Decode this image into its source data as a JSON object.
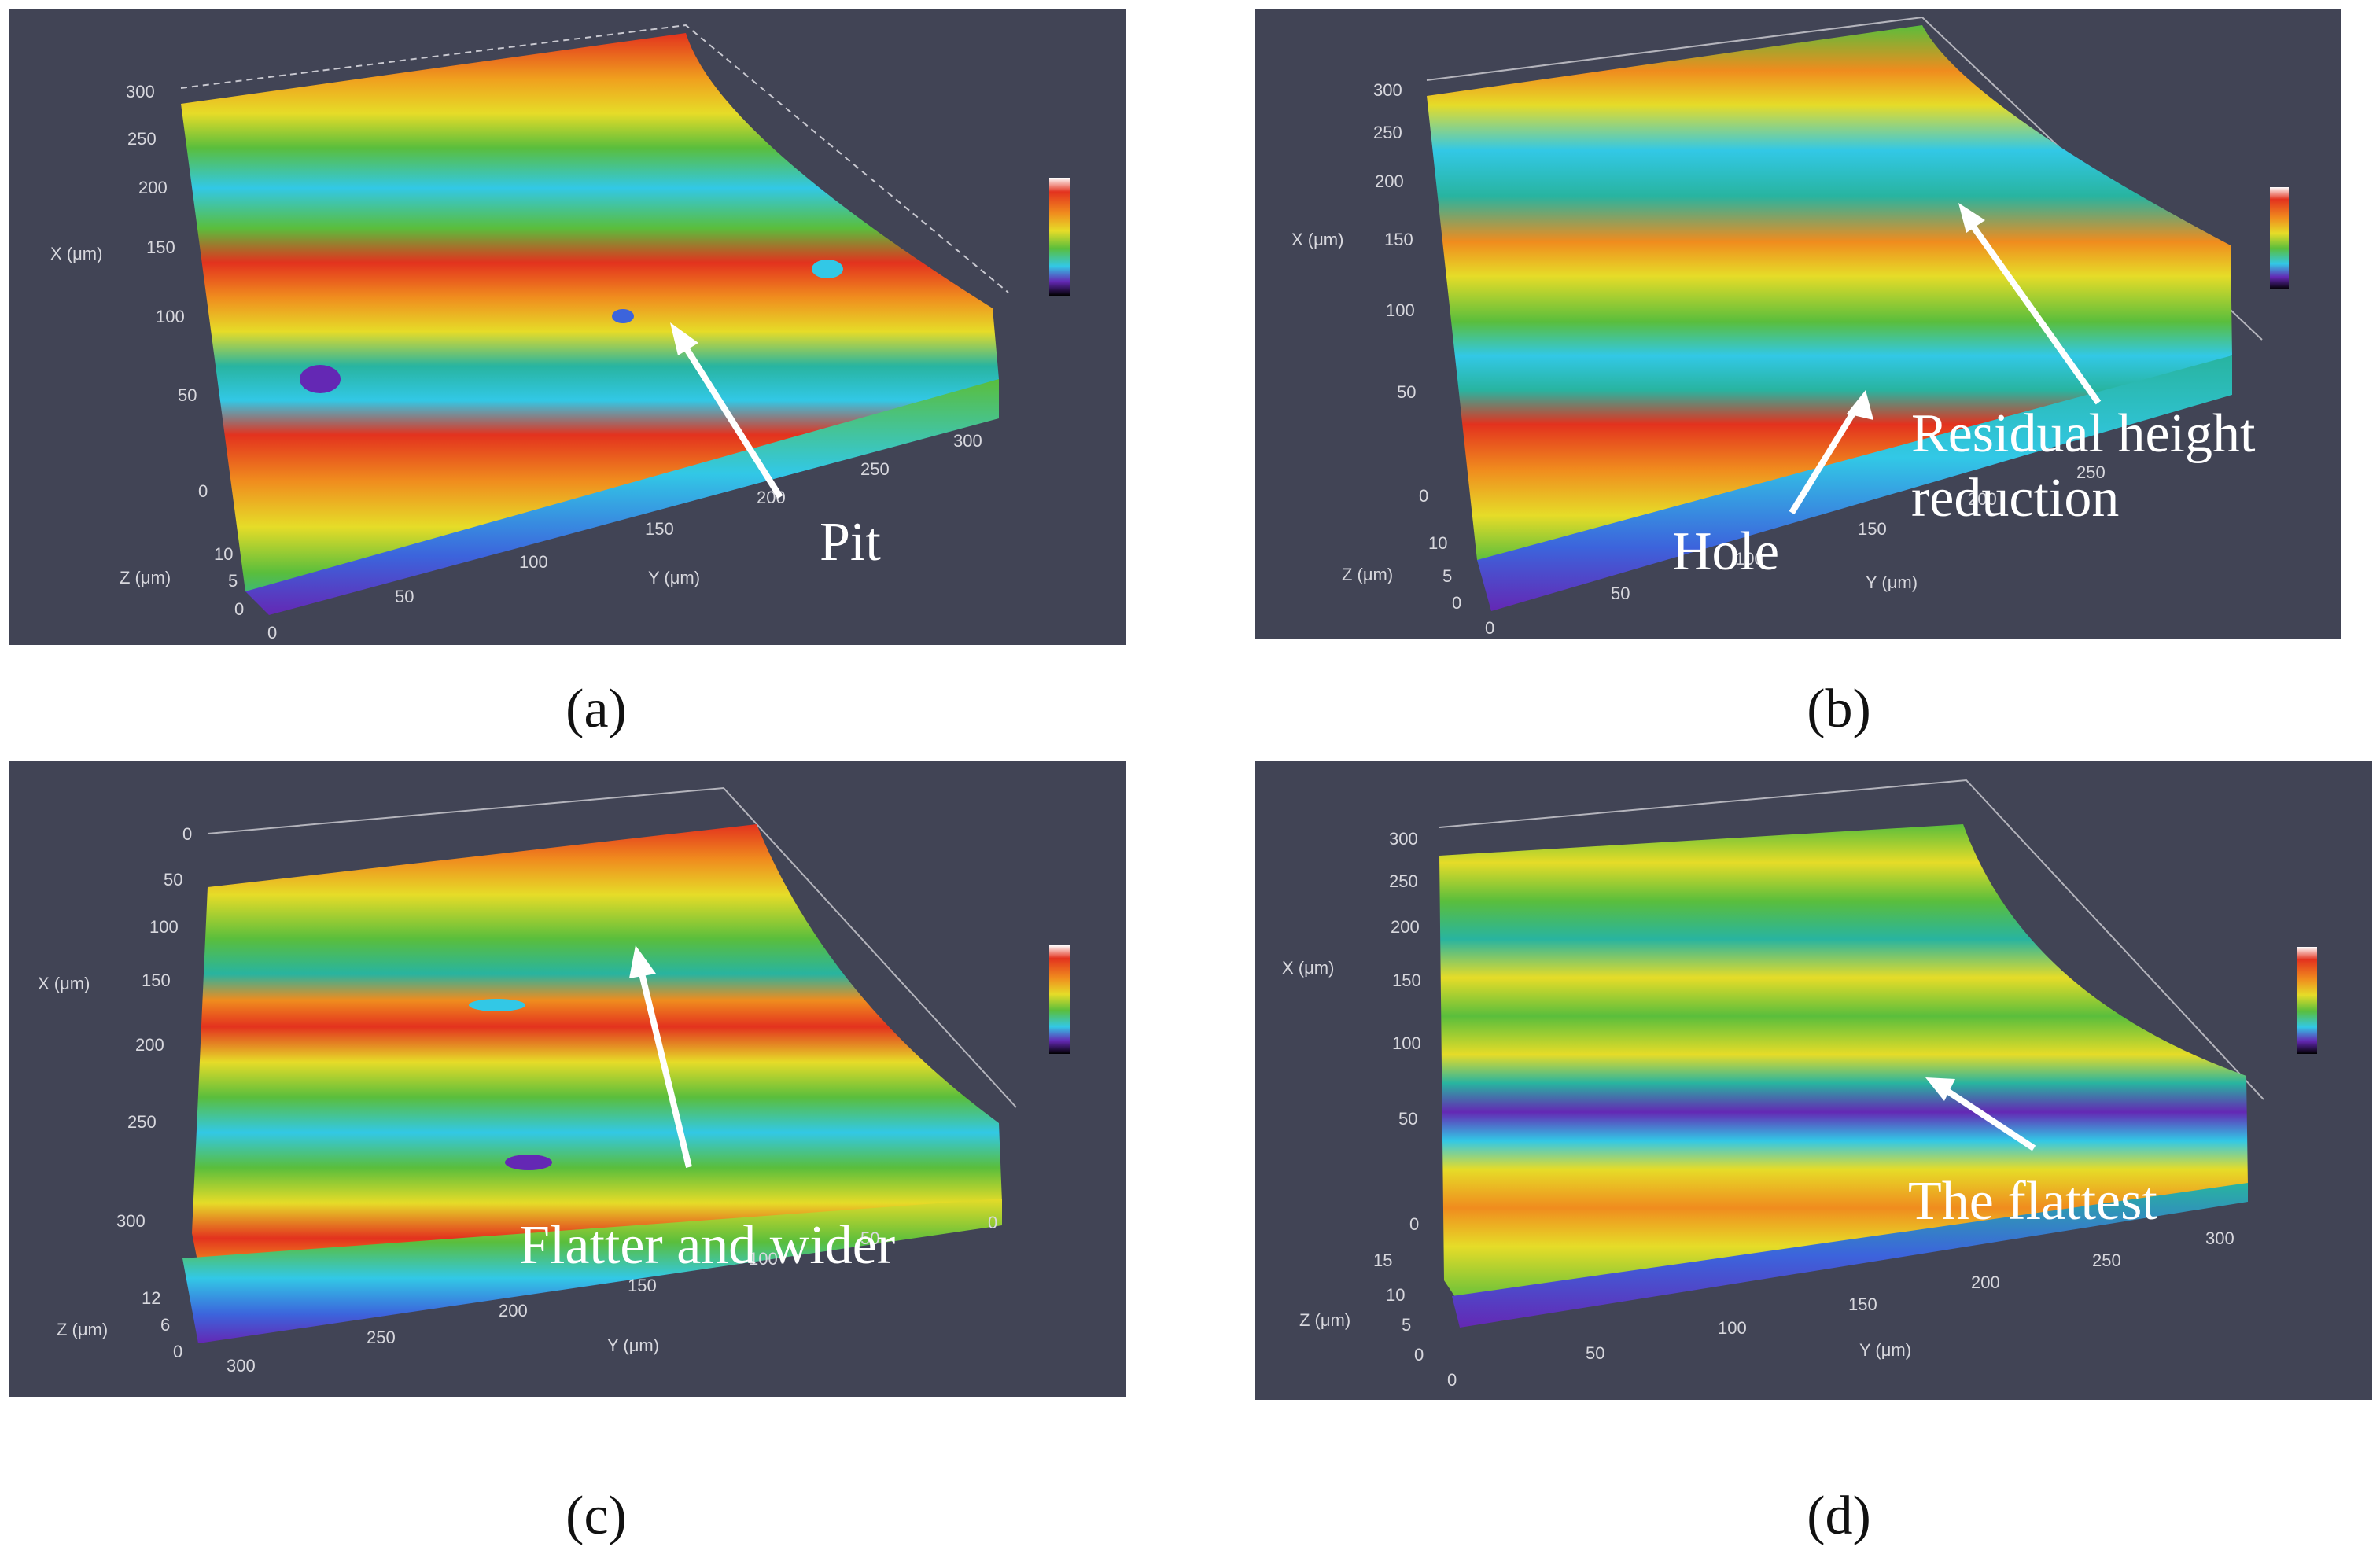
{
  "panels": [
    {
      "id": "a",
      "caption": "(a)",
      "axis_titles": {
        "x": "X (μm)",
        "y": "Y (μm)",
        "z": "Z (μm)"
      },
      "x_ticks": [
        "300",
        "250",
        "200",
        "150",
        "100",
        "50",
        "0"
      ],
      "y_ticks": [
        "0",
        "50",
        "100",
        "150",
        "200",
        "250",
        "300"
      ],
      "z_ticks": [
        "10",
        "5",
        "0"
      ],
      "annotation": "Pit"
    },
    {
      "id": "b",
      "caption": "(b)",
      "axis_titles": {
        "x": "X (μm)",
        "y": "Y (μm)",
        "z": "Z (μm)"
      },
      "x_ticks": [
        "300",
        "250",
        "200",
        "150",
        "100",
        "50",
        "0"
      ],
      "y_ticks": [
        "0",
        "50",
        "100",
        "150",
        "200",
        "250"
      ],
      "z_ticks": [
        "10",
        "5",
        "0"
      ],
      "annotation_1": "Hole",
      "annotation_2_line1": "Residual height",
      "annotation_2_line2": "reduction"
    },
    {
      "id": "c",
      "caption": "(c)",
      "axis_titles": {
        "x": "X (μm)",
        "y": "Y (μm)",
        "z": "Z (μm)"
      },
      "x_ticks": [
        "0",
        "50",
        "100",
        "150",
        "200",
        "250",
        "300"
      ],
      "y_ticks": [
        "300",
        "250",
        "200",
        "150",
        "100",
        "50",
        "0"
      ],
      "z_ticks": [
        "12",
        "6",
        "0"
      ],
      "annotation": "Flatter and wider"
    },
    {
      "id": "d",
      "caption": "(d)",
      "axis_titles": {
        "x": "X (μm)",
        "y": "Y (μm)",
        "z": "Z (μm)"
      },
      "x_ticks": [
        "300",
        "250",
        "200",
        "150",
        "100",
        "50",
        "0"
      ],
      "y_ticks": [
        "0",
        "50",
        "100",
        "150",
        "200",
        "250",
        "300"
      ],
      "z_ticks": [
        "15",
        "10",
        "5",
        "0"
      ],
      "annotation": "The flattest"
    }
  ],
  "colors": {
    "background": "#414455",
    "red": "#e3321e",
    "orange": "#f08c1e",
    "yellow": "#e6dc28",
    "green": "#5abe3c",
    "teal": "#28b4a0",
    "cyan": "#32c8e6",
    "blue": "#3c64dc",
    "purple": "#6428b4"
  }
}
